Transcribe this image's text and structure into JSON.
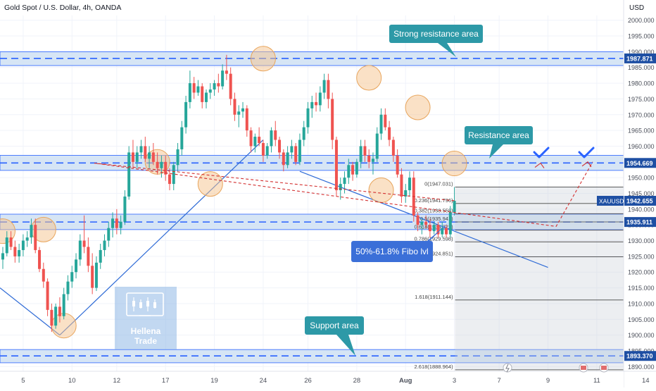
{
  "header": {
    "title": "Gold Spot / U.S. Dollar, 4h, OANDA"
  },
  "axis": {
    "currency": "USD"
  },
  "colors": {
    "up": "#26a69a",
    "down": "#ef5350",
    "zone_fill": "#cfe0f3",
    "zone_border": "#2962ff",
    "callout": "#2d99a7",
    "callout_blue": "#3b6fd8",
    "trend": "#2f6bd6",
    "circle": "#f5c48e",
    "price_tag": "#1e4fa3",
    "target": "#d32f2f",
    "fib": "#444444"
  },
  "chart_data": {
    "type": "candlestick",
    "ylim": [
      1888.5,
      2001.5
    ],
    "yticks": [
      1890,
      1895,
      1900,
      1905,
      1910,
      1915,
      1920,
      1925,
      1930,
      1935,
      1940,
      1945,
      1950,
      1955,
      1960,
      1965,
      1970,
      1975,
      1980,
      1985,
      1990,
      1995,
      2000
    ],
    "xticks": [
      {
        "label": "5",
        "bar": 5
      },
      {
        "label": "10",
        "bar": 17
      },
      {
        "label": "12",
        "bar": 28
      },
      {
        "label": "17",
        "bar": 40
      },
      {
        "label": "19",
        "bar": 52
      },
      {
        "label": "24",
        "bar": 64
      },
      {
        "label": "26",
        "bar": 75
      },
      {
        "label": "28",
        "bar": 87
      },
      {
        "label": "Aug",
        "bar": 99
      },
      {
        "label": "3",
        "bar": 111
      },
      {
        "label": "7",
        "bar": 122
      },
      {
        "label": "9",
        "bar": 134
      },
      {
        "label": "11",
        "bar": 146
      },
      {
        "label": "14",
        "bar": 158
      }
    ],
    "candles": [
      {
        "o": 1924,
        "h": 1928,
        "l": 1921,
        "c": 1926
      },
      {
        "o": 1926,
        "h": 1933,
        "l": 1925,
        "c": 1931
      },
      {
        "o": 1931,
        "h": 1933,
        "l": 1927,
        "c": 1928
      },
      {
        "o": 1928,
        "h": 1930,
        "l": 1923,
        "c": 1925
      },
      {
        "o": 1925,
        "h": 1929,
        "l": 1923,
        "c": 1927
      },
      {
        "o": 1927,
        "h": 1932,
        "l": 1925,
        "c": 1930
      },
      {
        "o": 1930,
        "h": 1933,
        "l": 1928,
        "c": 1931
      },
      {
        "o": 1931,
        "h": 1937,
        "l": 1929,
        "c": 1935
      },
      {
        "o": 1935,
        "h": 1937,
        "l": 1926,
        "c": 1927
      },
      {
        "o": 1927,
        "h": 1928,
        "l": 1920,
        "c": 1921
      },
      {
        "o": 1921,
        "h": 1923,
        "l": 1915,
        "c": 1917
      },
      {
        "o": 1917,
        "h": 1918,
        "l": 1906,
        "c": 1908
      },
      {
        "o": 1908,
        "h": 1910,
        "l": 1901,
        "c": 1903
      },
      {
        "o": 1903,
        "h": 1910,
        "l": 1902,
        "c": 1909
      },
      {
        "o": 1909,
        "h": 1912,
        "l": 1904,
        "c": 1906
      },
      {
        "o": 1906,
        "h": 1915,
        "l": 1905,
        "c": 1913
      },
      {
        "o": 1913,
        "h": 1919,
        "l": 1911,
        "c": 1917
      },
      {
        "o": 1917,
        "h": 1922,
        "l": 1915,
        "c": 1920
      },
      {
        "o": 1920,
        "h": 1926,
        "l": 1918,
        "c": 1924
      },
      {
        "o": 1924,
        "h": 1932,
        "l": 1922,
        "c": 1930
      },
      {
        "o": 1930,
        "h": 1938,
        "l": 1926,
        "c": 1928
      },
      {
        "o": 1928,
        "h": 1931,
        "l": 1920,
        "c": 1922
      },
      {
        "o": 1922,
        "h": 1926,
        "l": 1913,
        "c": 1915
      },
      {
        "o": 1915,
        "h": 1925,
        "l": 1914,
        "c": 1923
      },
      {
        "o": 1923,
        "h": 1929,
        "l": 1921,
        "c": 1927
      },
      {
        "o": 1927,
        "h": 1932,
        "l": 1925,
        "c": 1930
      },
      {
        "o": 1930,
        "h": 1936,
        "l": 1928,
        "c": 1934
      },
      {
        "o": 1934,
        "h": 1939,
        "l": 1931,
        "c": 1937
      },
      {
        "o": 1937,
        "h": 1940,
        "l": 1932,
        "c": 1934
      },
      {
        "o": 1934,
        "h": 1938,
        "l": 1932,
        "c": 1936
      },
      {
        "o": 1936,
        "h": 1946,
        "l": 1935,
        "c": 1944
      },
      {
        "o": 1944,
        "h": 1960,
        "l": 1943,
        "c": 1958
      },
      {
        "o": 1958,
        "h": 1962,
        "l": 1953,
        "c": 1955
      },
      {
        "o": 1955,
        "h": 1960,
        "l": 1953,
        "c": 1958
      },
      {
        "o": 1958,
        "h": 1962,
        "l": 1956,
        "c": 1960
      },
      {
        "o": 1960,
        "h": 1963,
        "l": 1955,
        "c": 1956
      },
      {
        "o": 1956,
        "h": 1960,
        "l": 1953,
        "c": 1958
      },
      {
        "o": 1958,
        "h": 1961,
        "l": 1954,
        "c": 1955
      },
      {
        "o": 1955,
        "h": 1958,
        "l": 1951,
        "c": 1953
      },
      {
        "o": 1953,
        "h": 1957,
        "l": 1950,
        "c": 1955
      },
      {
        "o": 1955,
        "h": 1957,
        "l": 1949,
        "c": 1951
      },
      {
        "o": 1951,
        "h": 1953,
        "l": 1946,
        "c": 1948
      },
      {
        "o": 1948,
        "h": 1955,
        "l": 1946,
        "c": 1954
      },
      {
        "o": 1954,
        "h": 1961,
        "l": 1952,
        "c": 1959
      },
      {
        "o": 1959,
        "h": 1968,
        "l": 1957,
        "c": 1966
      },
      {
        "o": 1966,
        "h": 1976,
        "l": 1964,
        "c": 1974
      },
      {
        "o": 1974,
        "h": 1984,
        "l": 1972,
        "c": 1980
      },
      {
        "o": 1980,
        "h": 1982,
        "l": 1975,
        "c": 1977
      },
      {
        "o": 1977,
        "h": 1981,
        "l": 1976,
        "c": 1979
      },
      {
        "o": 1979,
        "h": 1980,
        "l": 1972,
        "c": 1974
      },
      {
        "o": 1974,
        "h": 1978,
        "l": 1972,
        "c": 1977
      },
      {
        "o": 1977,
        "h": 1980,
        "l": 1975,
        "c": 1978
      },
      {
        "o": 1978,
        "h": 1981,
        "l": 1976,
        "c": 1980
      },
      {
        "o": 1980,
        "h": 1983,
        "l": 1977,
        "c": 1979
      },
      {
        "o": 1979,
        "h": 1986,
        "l": 1978,
        "c": 1984
      },
      {
        "o": 1984,
        "h": 1989,
        "l": 1981,
        "c": 1983
      },
      {
        "o": 1983,
        "h": 1985,
        "l": 1973,
        "c": 1975
      },
      {
        "o": 1975,
        "h": 1977,
        "l": 1968,
        "c": 1970
      },
      {
        "o": 1970,
        "h": 1973,
        "l": 1966,
        "c": 1971
      },
      {
        "o": 1971,
        "h": 1974,
        "l": 1969,
        "c": 1972
      },
      {
        "o": 1972,
        "h": 1973,
        "l": 1963,
        "c": 1965
      },
      {
        "o": 1965,
        "h": 1966,
        "l": 1958,
        "c": 1960
      },
      {
        "o": 1960,
        "h": 1964,
        "l": 1958,
        "c": 1963
      },
      {
        "o": 1963,
        "h": 1966,
        "l": 1960,
        "c": 1961
      },
      {
        "o": 1961,
        "h": 1962,
        "l": 1955,
        "c": 1957
      },
      {
        "o": 1957,
        "h": 1961,
        "l": 1956,
        "c": 1960
      },
      {
        "o": 1960,
        "h": 1966,
        "l": 1958,
        "c": 1965
      },
      {
        "o": 1965,
        "h": 1968,
        "l": 1960,
        "c": 1962
      },
      {
        "o": 1962,
        "h": 1963,
        "l": 1956,
        "c": 1958
      },
      {
        "o": 1958,
        "h": 1959,
        "l": 1952,
        "c": 1954
      },
      {
        "o": 1954,
        "h": 1960,
        "l": 1953,
        "c": 1958
      },
      {
        "o": 1958,
        "h": 1962,
        "l": 1956,
        "c": 1960
      },
      {
        "o": 1960,
        "h": 1961,
        "l": 1954,
        "c": 1955
      },
      {
        "o": 1955,
        "h": 1964,
        "l": 1954,
        "c": 1962
      },
      {
        "o": 1962,
        "h": 1968,
        "l": 1960,
        "c": 1966
      },
      {
        "o": 1966,
        "h": 1974,
        "l": 1964,
        "c": 1972
      },
      {
        "o": 1972,
        "h": 1976,
        "l": 1969,
        "c": 1974
      },
      {
        "o": 1974,
        "h": 1977,
        "l": 1971,
        "c": 1973
      },
      {
        "o": 1973,
        "h": 1979,
        "l": 1971,
        "c": 1977
      },
      {
        "o": 1977,
        "h": 1983,
        "l": 1975,
        "c": 1981
      },
      {
        "o": 1981,
        "h": 1983,
        "l": 1972,
        "c": 1975
      },
      {
        "o": 1975,
        "h": 1977,
        "l": 1959,
        "c": 1962
      },
      {
        "o": 1962,
        "h": 1963,
        "l": 1944,
        "c": 1946
      },
      {
        "o": 1946,
        "h": 1950,
        "l": 1943,
        "c": 1948
      },
      {
        "o": 1948,
        "h": 1952,
        "l": 1945,
        "c": 1950
      },
      {
        "o": 1950,
        "h": 1956,
        "l": 1948,
        "c": 1954
      },
      {
        "o": 1954,
        "h": 1955,
        "l": 1949,
        "c": 1951
      },
      {
        "o": 1951,
        "h": 1956,
        "l": 1950,
        "c": 1955
      },
      {
        "o": 1955,
        "h": 1962,
        "l": 1953,
        "c": 1960
      },
      {
        "o": 1960,
        "h": 1962,
        "l": 1955,
        "c": 1957
      },
      {
        "o": 1957,
        "h": 1959,
        "l": 1953,
        "c": 1955
      },
      {
        "o": 1955,
        "h": 1958,
        "l": 1951,
        "c": 1956
      },
      {
        "o": 1956,
        "h": 1966,
        "l": 1955,
        "c": 1964
      },
      {
        "o": 1964,
        "h": 1972,
        "l": 1962,
        "c": 1970
      },
      {
        "o": 1970,
        "h": 1972,
        "l": 1965,
        "c": 1966
      },
      {
        "o": 1966,
        "h": 1968,
        "l": 1960,
        "c": 1962
      },
      {
        "o": 1962,
        "h": 1963,
        "l": 1955,
        "c": 1957
      },
      {
        "o": 1957,
        "h": 1959,
        "l": 1950,
        "c": 1951
      },
      {
        "o": 1951,
        "h": 1953,
        "l": 1942,
        "c": 1944
      },
      {
        "o": 1944,
        "h": 1948,
        "l": 1942,
        "c": 1946
      },
      {
        "o": 1946,
        "h": 1952,
        "l": 1944,
        "c": 1950
      },
      {
        "o": 1950,
        "h": 1952,
        "l": 1936,
        "c": 1938
      },
      {
        "o": 1938,
        "h": 1939,
        "l": 1933,
        "c": 1935
      },
      {
        "o": 1935,
        "h": 1937,
        "l": 1932,
        "c": 1936
      },
      {
        "o": 1936,
        "h": 1938,
        "l": 1934,
        "c": 1935
      },
      {
        "o": 1935,
        "h": 1937,
        "l": 1931,
        "c": 1933
      },
      {
        "o": 1933,
        "h": 1936,
        "l": 1932,
        "c": 1935
      },
      {
        "o": 1935,
        "h": 1936,
        "l": 1931,
        "c": 1932
      },
      {
        "o": 1932,
        "h": 1936,
        "l": 1931,
        "c": 1934
      },
      {
        "o": 1934,
        "h": 1935,
        "l": 1931,
        "c": 1932
      },
      {
        "o": 1932,
        "h": 1941,
        "l": 1931,
        "c": 1939
      },
      {
        "o": 1939,
        "h": 1947,
        "l": 1938,
        "c": 1942.655
      }
    ],
    "zones": [
      {
        "name": "strong-resistance",
        "top": 1990,
        "bottom": 1985.6,
        "mid": 1987.871
      },
      {
        "name": "resistance",
        "top": 1957.1,
        "bottom": 1952.3,
        "mid": 1954.669
      },
      {
        "name": "support-mid",
        "top": 1938.4,
        "bottom": 1933.5,
        "mid": 1935.911
      },
      {
        "name": "support",
        "top": 1895.4,
        "bottom": 1891.2,
        "mid": 1893.37
      }
    ],
    "price_labels": [
      {
        "name": "strong-resistance",
        "value": 1987.871,
        "text": "1987.871"
      },
      {
        "name": "resistance",
        "value": 1954.669,
        "text": "1954.669"
      },
      {
        "name": "mid-support",
        "value": 1935.911,
        "text": "1935.911"
      },
      {
        "name": "support",
        "value": 1893.37,
        "text": "1893.370"
      }
    ],
    "current_price": {
      "symbol": "XAUUSD",
      "value": 1942.655,
      "text": "1942.655"
    },
    "fib_levels": [
      {
        "value": 1947.031,
        "label": "0(1947.031)"
      },
      {
        "value": 1941.796,
        "label": "0.236(1941.796)"
      },
      {
        "value": 1938.558,
        "label": "0.382(1938.558)"
      },
      {
        "value": 1935.941,
        "label": "0.5(1935.941)"
      },
      {
        "value": 1933.321,
        "label": "0.618(1933.321)"
      },
      {
        "value": 1929.598,
        "label": "0.786(1929.598)"
      },
      {
        "value": 1924.851,
        "label": "1(1924.851)"
      },
      {
        "value": 1911.144,
        "label": "1.618(1911.144)"
      },
      {
        "value": 1888.964,
        "label": "2.618(1888.964)"
      }
    ],
    "annotations": [
      {
        "name": "strong-resistance-callout",
        "text": "Strong resistance area"
      },
      {
        "name": "resistance-callout",
        "text": "Resistance area"
      },
      {
        "name": "fibo-callout",
        "text": "50%-61.8% Fibo lvl"
      },
      {
        "name": "support-callout",
        "text": "Support area"
      }
    ],
    "watermark": [
      "Hellena",
      "Trade"
    ]
  }
}
